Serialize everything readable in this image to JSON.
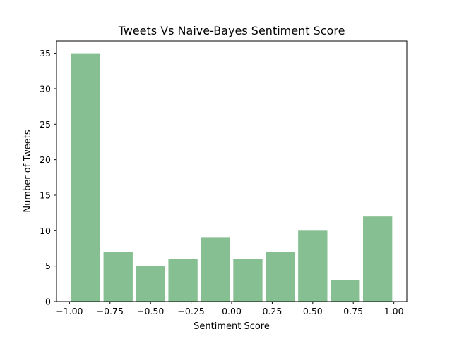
{
  "chart_data": {
    "type": "bar",
    "title": "Tweets Vs Naive-Bayes Sentiment Score",
    "xlabel": "Sentiment Score",
    "ylabel": "Number of Tweets",
    "bar_color": "#86bf91",
    "xlim": [
      -1.08,
      1.08
    ],
    "ylim": [
      0,
      36.75
    ],
    "xticks": [
      -1.0,
      -0.75,
      -0.5,
      -0.25,
      0.0,
      0.25,
      0.5,
      0.75,
      1.0
    ],
    "xtick_labels": [
      "−1.00",
      "−0.75",
      "−0.50",
      "−0.25",
      "0.00",
      "0.25",
      "0.50",
      "0.75",
      "1.00"
    ],
    "yticks": [
      0,
      5,
      10,
      15,
      20,
      25,
      30,
      35
    ],
    "ytick_labels": [
      "0",
      "5",
      "10",
      "15",
      "20",
      "25",
      "30",
      "35"
    ],
    "bin_edges": [
      -1.0,
      -0.8,
      -0.6,
      -0.4,
      -0.2,
      0.0,
      0.2,
      0.4,
      0.6,
      0.8,
      1.0
    ],
    "values": [
      35,
      7,
      5,
      6,
      9,
      6,
      7,
      10,
      3,
      12
    ],
    "rwidth": 0.9,
    "grid": false
  }
}
